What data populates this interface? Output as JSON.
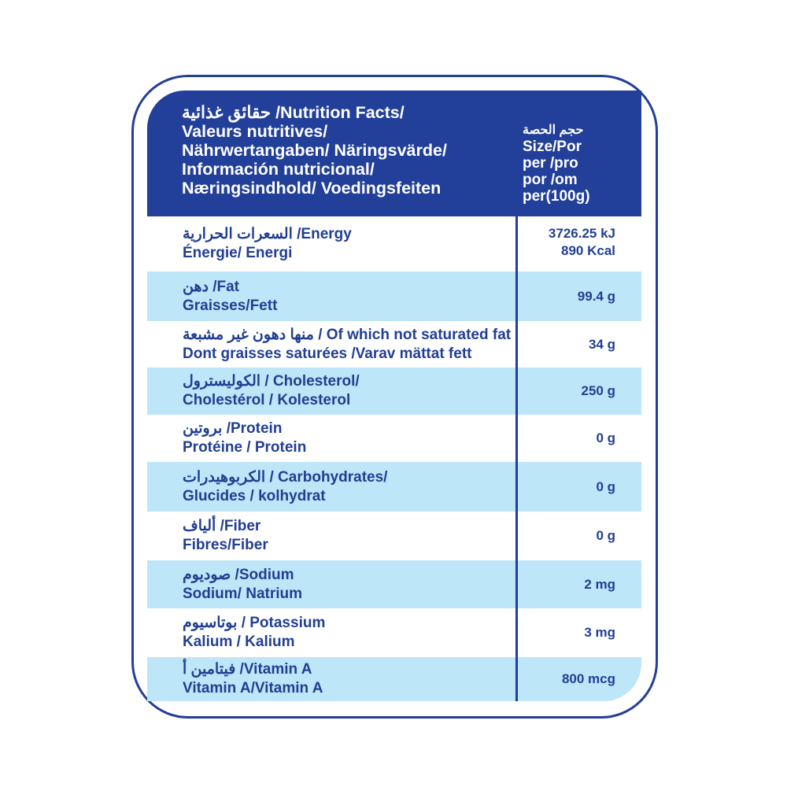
{
  "header": {
    "title_lines": [
      "حقائق غذائية /Nutrition Facts/",
      "Valeurs nutritives/",
      "Nährwertangaben/ Näringsvärde/",
      "Información nutricional/",
      "Næringsindhold/ Voedingsfeiten"
    ],
    "size_lines": [
      "حجم الحصة",
      "Size/Por",
      "per /pro",
      "por /om",
      "per(100g)"
    ]
  },
  "rows": [
    {
      "line1": "السعرات الحرارية /Energy",
      "line2": "Énergie/ Energi",
      "value": "3726.25 kJ",
      "value2": "890 Kcal",
      "shaded": false
    },
    {
      "line1": "دهن /Fat",
      "line2": "Graisses/Fett",
      "value": "99.4 g",
      "shaded": true
    },
    {
      "line1": "منها دهون غير مشبعة / Of which not saturated fat",
      "line2": "Dont graisses saturées /Varav mättat fett",
      "value": "34 g",
      "shaded": false
    },
    {
      "line1": "الكوليسترول / Cholesterol/",
      "line2": "Cholestérol / Kolesterol",
      "value": "250 g",
      "shaded": true
    },
    {
      "line1": "بروتين /Protein",
      "line2": "Protéine / Protein",
      "value": "0 g",
      "shaded": false
    },
    {
      "line1": "الكربوهيدرات / Carbohydrates/",
      "line2": "Glucides / kolhydrat",
      "value": "0 g",
      "shaded": true
    },
    {
      "line1": "ألياف /Fiber",
      "line2": "Fibres/Fiber",
      "value": "0 g",
      "shaded": false
    },
    {
      "line1": "صوديوم /Sodium",
      "line2": "Sodium/ Natrium",
      "value": "2 mg",
      "shaded": true
    },
    {
      "line1": "بوتاسيوم / Potassium",
      "line2": "Kalium / Kalium",
      "value": "3 mg",
      "shaded": false
    },
    {
      "line1": "فيتامين أ /Vitamin A",
      "line2": "Vitamin A/Vitamin A",
      "value": "800 mcg",
      "shaded": true
    }
  ],
  "colors": {
    "brand_blue": "#223f99",
    "row_shade": "#bde6f8",
    "text": "#213e92"
  }
}
